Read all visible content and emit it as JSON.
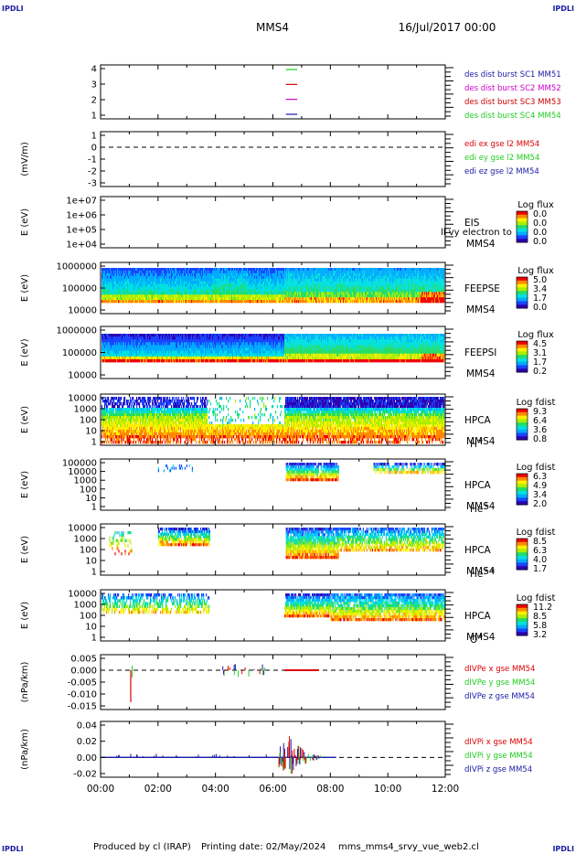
{
  "header": {
    "corner_tl": "IPDLI",
    "corner_tr": "IPDLI",
    "corner_bl": "IPDLI",
    "corner_br": "IPDLI",
    "spacecraft": "MMS4",
    "date": "16/Jul/2017 00:00"
  },
  "footer": {
    "produced_by": "Produced by  cl (IRAP)",
    "printing_date": "Printing date: 02/May/2024",
    "script_name": "mms_mms4_srvy_vue_web2.cl"
  },
  "colors": {
    "mms1": "#1a1aa6",
    "mms2": "#cc00cc",
    "mms3": "#cc0000",
    "mms4": "#22cc22",
    "ex": "#dd0000",
    "ey": "#22cc22",
    "ez": "#1a1aa6",
    "spectrogram": [
      "#2d00b0",
      "#1a44ff",
      "#00aaff",
      "#00e0e0",
      "#22dd66",
      "#aaee00",
      "#ffee00",
      "#ff8800",
      "#ee0000"
    ]
  },
  "chart_data": {
    "type": "panel_stack",
    "x_axis": {
      "range": [
        "00:00",
        "12:00"
      ],
      "ticks": [
        "00:00",
        "02:00",
        "04:00",
        "06:00",
        "08:00",
        "10:00",
        "12:00"
      ]
    },
    "panels": [
      {
        "id": "burst",
        "type": "line",
        "yticks": [
          "4",
          "3",
          "2",
          "1"
        ],
        "legend": [
          "des dist burst SC1 MM51",
          "des dist burst SC2 MM52",
          "des dist burst SC3 MM53",
          "des dist burst SC4 MM54"
        ],
        "markers": [
          {
            "series": "SC4",
            "level": 4,
            "t": [
              6.45,
              6.85
            ]
          },
          {
            "series": "SC3",
            "level": 3,
            "t": [
              6.45,
              6.85
            ]
          },
          {
            "series": "SC2",
            "level": 2,
            "t": [
              6.45,
              6.85
            ]
          },
          {
            "series": "SC1",
            "level": 1,
            "t": [
              6.45,
              6.85
            ]
          }
        ]
      },
      {
        "id": "edi",
        "type": "line",
        "ylabel": "(mV/m)",
        "yticks": [
          "1",
          "0",
          "-1",
          "-2",
          "-3"
        ],
        "legend": [
          "edi ex gse l2 MM54",
          "edi ey gse l2 MM54",
          "edi ez gse l2 MM54"
        ]
      },
      {
        "id": "eis",
        "type": "heatmap",
        "ylabel": "E (eV)",
        "yticks": [
          "1e+07",
          "1e+06",
          "1e+05",
          "1e+04"
        ],
        "right_label_top": "EIS",
        "right_label_bottom": "MMS4",
        "overlay_text": "ll vy electron to",
        "colorbar": {
          "title": "Log flux",
          "ticks": [
            "0.0",
            "0.0",
            "0.0",
            "0.0"
          ]
        }
      },
      {
        "id": "feeps_e",
        "type": "heatmap",
        "ylabel": "E (eV)",
        "yticks": [
          "1000000",
          "100000",
          "10000"
        ],
        "right_label_top": "FEEPSE",
        "right_label_bottom": "MMS4",
        "colorbar": {
          "title": "Log flux",
          "ticks": [
            "5.0",
            "3.4",
            "1.7",
            "0.0"
          ]
        }
      },
      {
        "id": "feeps_i",
        "type": "heatmap",
        "ylabel": "E (eV)",
        "yticks": [
          "1000000",
          "100000",
          "10000"
        ],
        "right_label_top": "FEEPSI",
        "right_label_bottom": "MMS4",
        "colorbar": {
          "title": "Log flux",
          "ticks": [
            "4.5",
            "3.1",
            "1.7",
            "0.2"
          ]
        }
      },
      {
        "id": "hpca_h",
        "type": "heatmap",
        "ylabel": "E (eV)",
        "yticks": [
          "10000",
          "1000",
          "100",
          "10",
          "1"
        ],
        "right_label_top": "HPCA",
        "right_label_bottom": "MMS4",
        "species": "H",
        "species_sup": "+",
        "colorbar": {
          "title": "Log fdist",
          "ticks": [
            "9.3",
            "6.4",
            "3.6",
            "0.8"
          ]
        }
      },
      {
        "id": "hpca_he1",
        "type": "heatmap",
        "ylabel": "E (eV)",
        "yticks": [
          "100000",
          "10000",
          "1000",
          "100",
          "10",
          "1"
        ],
        "right_label_top": "HPCA",
        "right_label_bottom": "MMS4",
        "species": "He",
        "species_sup": "+",
        "colorbar": {
          "title": "Log fdist",
          "ticks": [
            "6.3",
            "4.9",
            "3.4",
            "2.0"
          ]
        }
      },
      {
        "id": "hpca_he2",
        "type": "heatmap",
        "ylabel": "E (eV)",
        "yticks": [
          "10000",
          "1000",
          "100",
          "10",
          "1"
        ],
        "right_label_top": "HPCA",
        "right_label_bottom": "MMS4",
        "species": "He",
        "species_sup": "++",
        "colorbar": {
          "title": "Log fdist",
          "ticks": [
            "8.5",
            "6.3",
            "4.0",
            "1.7"
          ]
        }
      },
      {
        "id": "hpca_o",
        "type": "heatmap",
        "ylabel": "E (eV)",
        "yticks": [
          "10000",
          "1000",
          "100",
          "10",
          "1"
        ],
        "right_label_top": "HPCA",
        "right_label_bottom": "MMS4",
        "species": "O",
        "species_sup": "+",
        "colorbar": {
          "title": "Log fdist",
          "ticks": [
            "11.2",
            "8.5",
            "5.8",
            "3.2"
          ]
        }
      },
      {
        "id": "divpe",
        "type": "line",
        "ylabel": "(nPa/km)",
        "yticks": [
          "0.005",
          "0.000",
          "-0.005",
          "-0.010",
          "-0.015"
        ],
        "legend": [
          "dIVPe x gse MM54",
          "dIVPe y gse MM54",
          "dIVPe z gse MM54"
        ]
      },
      {
        "id": "divpi",
        "type": "line",
        "ylabel": "(nPa/km)",
        "yticks": [
          "0.04",
          "0.02",
          "0.00",
          "-0.02"
        ],
        "legend": [
          "dIVPi x gse MM54",
          "dIVPi y gse MM54",
          "dIVPi z gse MM54"
        ]
      }
    ]
  }
}
